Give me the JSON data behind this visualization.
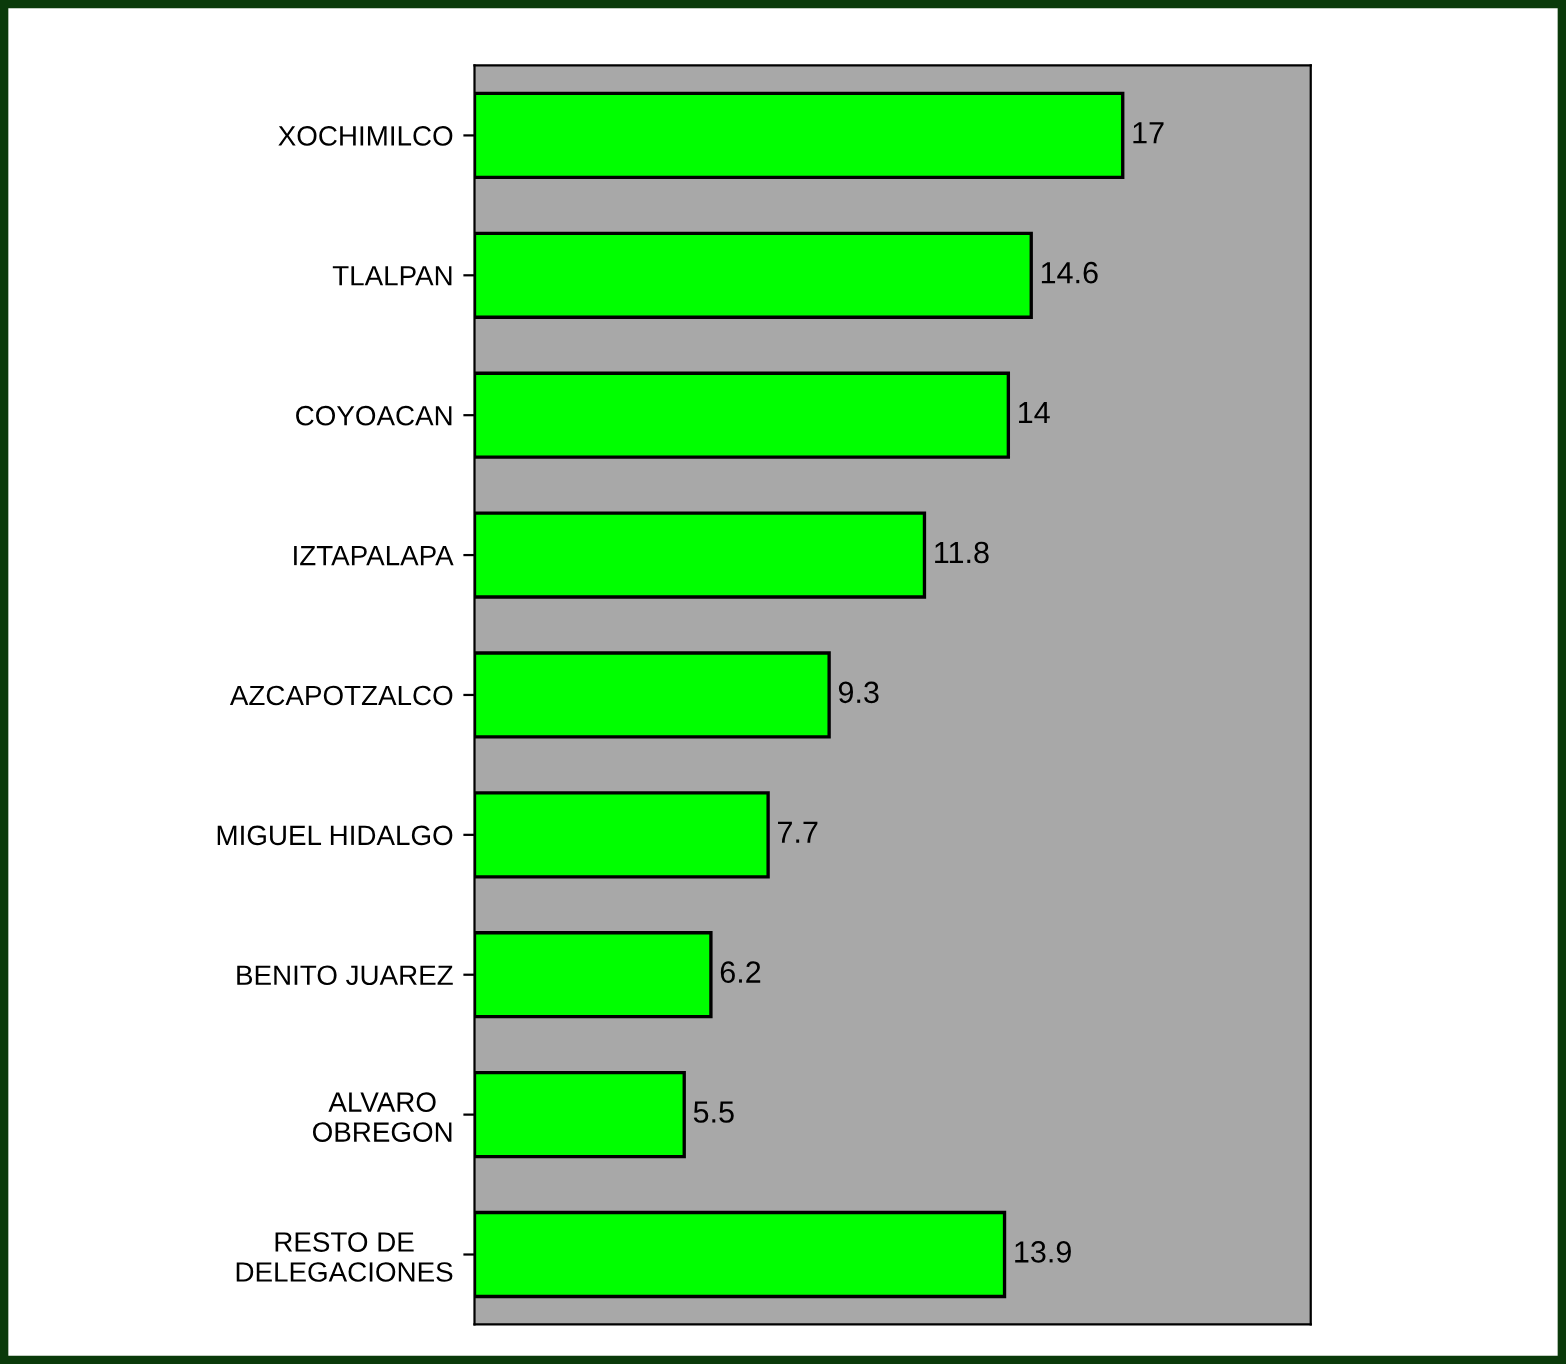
{
  "chart_data": {
    "type": "bar",
    "orientation": "horizontal",
    "categories": [
      "XOCHIMILCO",
      "TLALPAN",
      "COYOACAN",
      "IZTAPALAPA",
      "AZCAPOTZALCO",
      "MIGUEL HIDALGO",
      "BENITO JUAREZ",
      "ALVARO\nOBREGON",
      "RESTO DE\nDELEGACIONES"
    ],
    "values": [
      17,
      14.6,
      14,
      11.8,
      9.3,
      7.7,
      6.2,
      5.5,
      13.9
    ],
    "color": "#00ff00",
    "data_labels": true,
    "grid": false,
    "legend": false
  }
}
